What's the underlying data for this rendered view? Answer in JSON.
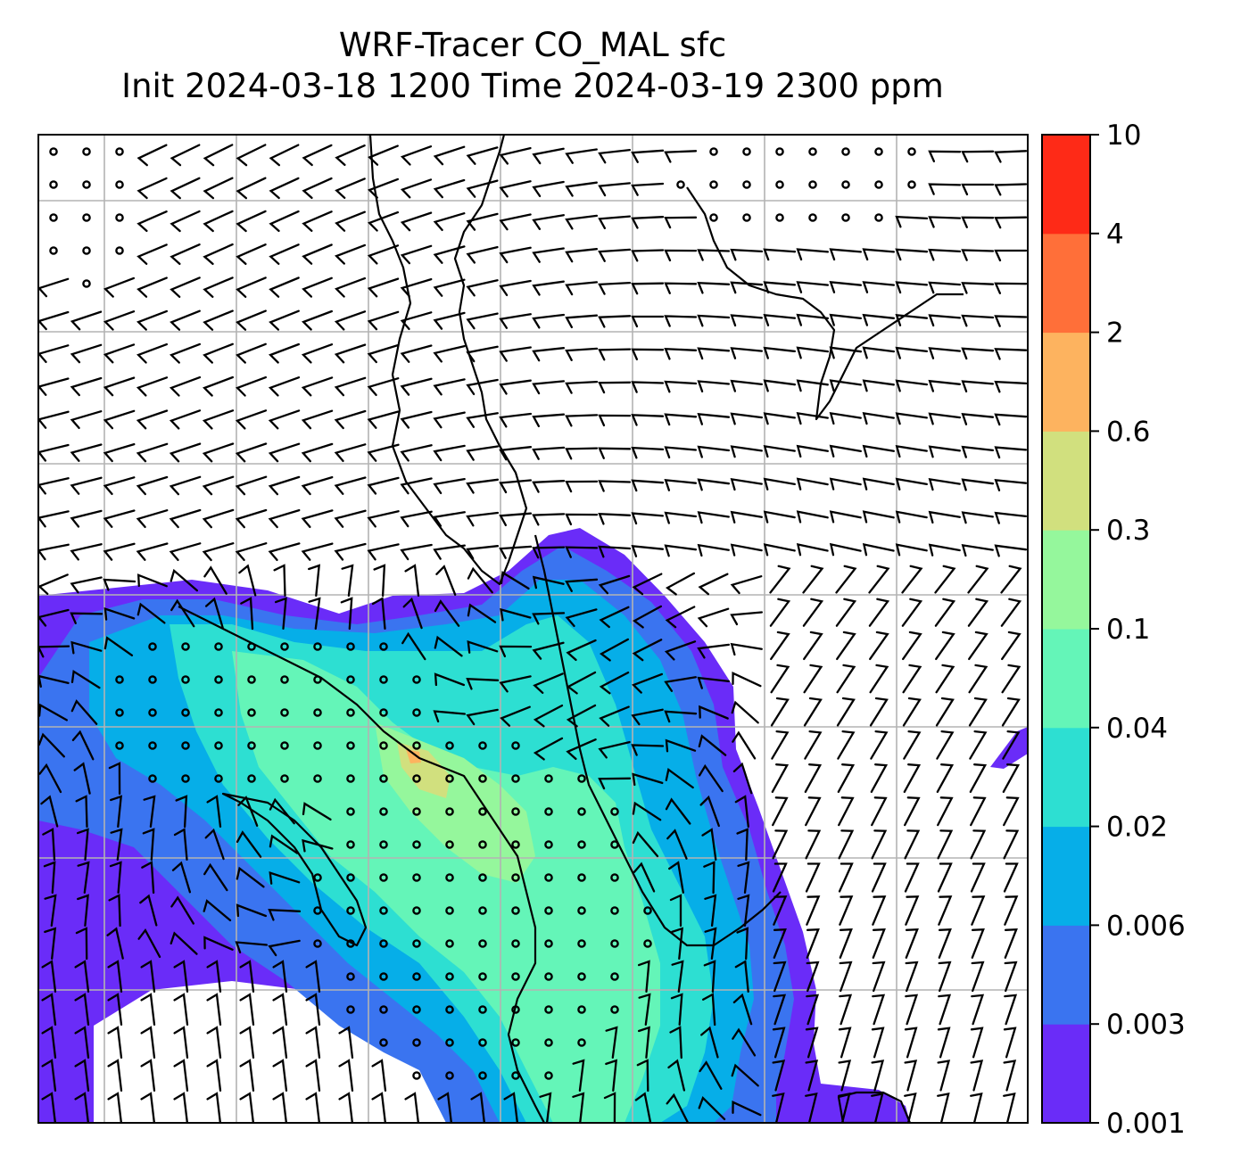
{
  "title": {
    "line1": "WRF-Tracer CO_MAL sfc",
    "line2": "Init 2024-03-18 1200 Time 2024-03-19 2300 ppm"
  },
  "colorbar": {
    "levels": [
      "0.001",
      "0.003",
      "0.006",
      "0.02",
      "0.04",
      "0.1",
      "0.3",
      "0.6",
      "2",
      "4",
      "10"
    ],
    "colors": [
      "#6a2cf8",
      "#3a74f0",
      "#06aee8",
      "#2ddfd2",
      "#64f5b8",
      "#95f79c",
      "#d1e07e",
      "#fdb35f",
      "#ff6f39",
      "#fe2a17"
    ]
  },
  "map": {
    "background": "#ffffff",
    "gridline_color": "#b3b3b3",
    "coastline_color": "#000000",
    "overlay": "wind barbs and calm circles",
    "barb_color": "#000000"
  }
}
